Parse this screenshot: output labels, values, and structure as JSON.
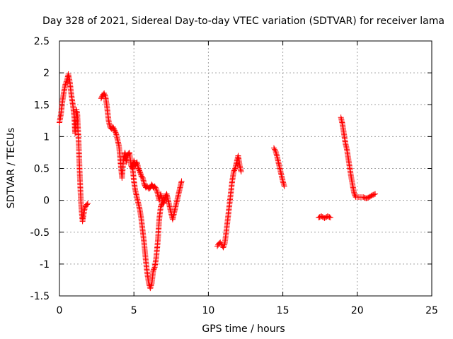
{
  "chart_data": {
    "type": "scatter",
    "title": "Day 328 of 2021, Sidereal Day-to-day VTEC variation (SDTVAR) for receiver lama",
    "xlabel": "GPS time / hours",
    "ylabel": "SDTVAR / TECUs",
    "xlim": [
      0,
      25
    ],
    "ylim": [
      -1.5,
      2.5
    ],
    "xticks": [
      0,
      5,
      10,
      15,
      20,
      25
    ],
    "yticks": [
      -1.5,
      -1,
      -0.5,
      0,
      0.5,
      1,
      1.5,
      2,
      2.5
    ],
    "xtick_labels": [
      "0",
      "5",
      "10",
      "15",
      "20",
      "25"
    ],
    "ytick_labels": [
      "-1.5",
      "-1",
      "-0.5",
      "0",
      "0.5",
      "1",
      "1.5",
      "2",
      "2.5"
    ],
    "grid": true,
    "marker": "+",
    "color": "#ff0000",
    "series": [
      {
        "name": "SDTVAR",
        "segments": [
          [
            [
              0.0,
              1.22
            ],
            [
              0.1,
              1.35
            ],
            [
              0.2,
              1.55
            ],
            [
              0.3,
              1.7
            ],
            [
              0.4,
              1.82
            ],
            [
              0.5,
              1.88
            ],
            [
              0.6,
              1.98
            ],
            [
              0.7,
              1.85
            ],
            [
              0.8,
              1.65
            ],
            [
              0.9,
              1.5
            ],
            [
              1.0,
              1.3
            ],
            [
              1.05,
              1.05
            ],
            [
              1.1,
              1.25
            ],
            [
              1.15,
              1.42
            ],
            [
              1.2,
              1.35
            ],
            [
              1.25,
              1.1
            ],
            [
              1.3,
              0.85
            ],
            [
              1.35,
              0.5
            ],
            [
              1.4,
              0.2
            ],
            [
              1.45,
              -0.05
            ],
            [
              1.5,
              -0.2
            ],
            [
              1.55,
              -0.33
            ],
            [
              1.6,
              -0.25
            ],
            [
              1.7,
              -0.12
            ],
            [
              1.8,
              -0.08
            ],
            [
              1.9,
              -0.05
            ]
          ],
          [
            [
              2.8,
              1.6
            ],
            [
              2.9,
              1.65
            ],
            [
              3.0,
              1.68
            ],
            [
              3.1,
              1.62
            ],
            [
              3.2,
              1.45
            ],
            [
              3.3,
              1.25
            ],
            [
              3.4,
              1.15
            ],
            [
              3.5,
              1.12
            ],
            [
              3.6,
              1.15
            ],
            [
              3.7,
              1.1
            ],
            [
              3.8,
              1.05
            ],
            [
              3.9,
              0.95
            ],
            [
              4.0,
              0.85
            ],
            [
              4.1,
              0.6
            ],
            [
              4.2,
              0.35
            ],
            [
              4.3,
              0.65
            ],
            [
              4.4,
              0.75
            ],
            [
              4.5,
              0.6
            ],
            [
              4.6,
              0.72
            ],
            [
              4.7,
              0.75
            ],
            [
              4.8,
              0.55
            ],
            [
              4.9,
              0.5
            ],
            [
              5.0,
              0.62
            ],
            [
              5.1,
              0.55
            ],
            [
              5.2,
              0.6
            ],
            [
              5.3,
              0.5
            ],
            [
              5.4,
              0.45
            ],
            [
              5.5,
              0.38
            ],
            [
              5.6,
              0.35
            ],
            [
              5.7,
              0.25
            ],
            [
              5.8,
              0.2
            ],
            [
              5.9,
              0.22
            ],
            [
              6.0,
              0.18
            ],
            [
              6.1,
              0.2
            ],
            [
              6.2,
              0.25
            ],
            [
              6.3,
              0.2
            ],
            [
              6.4,
              0.22
            ],
            [
              6.5,
              0.18
            ],
            [
              6.6,
              0.1
            ],
            [
              6.7,
              0.0
            ],
            [
              6.8,
              0.1
            ],
            [
              6.9,
              0.0
            ],
            [
              7.0,
              -0.05
            ],
            [
              7.1,
              0.05
            ],
            [
              7.2,
              0.1
            ],
            [
              7.3,
              0.0
            ],
            [
              7.4,
              -0.1
            ],
            [
              7.5,
              -0.2
            ],
            [
              7.6,
              -0.3
            ],
            [
              7.7,
              -0.2
            ],
            [
              7.8,
              -0.1
            ],
            [
              7.9,
              0.0
            ],
            [
              8.0,
              0.1
            ],
            [
              8.1,
              0.2
            ],
            [
              8.2,
              0.3
            ]
          ],
          [
            [
              4.9,
              0.55
            ],
            [
              5.0,
              0.3
            ],
            [
              5.1,
              0.15
            ],
            [
              5.2,
              0.05
            ],
            [
              5.3,
              -0.05
            ],
            [
              5.4,
              -0.15
            ],
            [
              5.5,
              -0.3
            ],
            [
              5.6,
              -0.5
            ],
            [
              5.7,
              -0.7
            ],
            [
              5.8,
              -0.95
            ],
            [
              5.9,
              -1.15
            ],
            [
              6.0,
              -1.3
            ],
            [
              6.1,
              -1.38
            ],
            [
              6.2,
              -1.3
            ],
            [
              6.3,
              -1.1
            ],
            [
              6.4,
              -1.05
            ],
            [
              6.5,
              -0.9
            ],
            [
              6.6,
              -0.65
            ],
            [
              6.7,
              -0.3
            ],
            [
              6.8,
              -0.1
            ],
            [
              6.9,
              -0.05
            ]
          ],
          [
            [
              10.6,
              -0.72
            ],
            [
              10.7,
              -0.68
            ],
            [
              10.8,
              -0.66
            ],
            [
              10.9,
              -0.7
            ],
            [
              11.0,
              -0.74
            ],
            [
              11.1,
              -0.68
            ],
            [
              11.2,
              -0.5
            ],
            [
              11.3,
              -0.3
            ],
            [
              11.4,
              -0.1
            ],
            [
              11.5,
              0.1
            ],
            [
              11.6,
              0.3
            ],
            [
              11.7,
              0.45
            ],
            [
              11.8,
              0.5
            ],
            [
              11.9,
              0.6
            ],
            [
              12.0,
              0.7
            ],
            [
              12.1,
              0.55
            ],
            [
              12.2,
              0.45
            ]
          ],
          [
            [
              14.4,
              0.82
            ],
            [
              14.5,
              0.78
            ],
            [
              14.6,
              0.7
            ],
            [
              14.7,
              0.6
            ],
            [
              14.8,
              0.5
            ],
            [
              14.9,
              0.4
            ],
            [
              15.0,
              0.3
            ],
            [
              15.1,
              0.22
            ]
          ],
          [
            [
              17.4,
              -0.27
            ],
            [
              17.6,
              -0.25
            ],
            [
              17.8,
              -0.28
            ],
            [
              18.0,
              -0.25
            ],
            [
              18.2,
              -0.27
            ]
          ],
          [
            [
              18.9,
              1.3
            ],
            [
              19.0,
              1.2
            ],
            [
              19.1,
              1.05
            ],
            [
              19.2,
              0.9
            ],
            [
              19.3,
              0.8
            ],
            [
              19.4,
              0.65
            ],
            [
              19.5,
              0.5
            ],
            [
              19.6,
              0.35
            ],
            [
              19.7,
              0.22
            ],
            [
              19.8,
              0.1
            ],
            [
              19.9,
              0.05
            ],
            [
              20.0,
              0.05
            ],
            [
              20.2,
              0.05
            ],
            [
              20.4,
              0.05
            ],
            [
              20.6,
              0.03
            ],
            [
              20.8,
              0.05
            ],
            [
              21.0,
              0.08
            ],
            [
              21.2,
              0.1
            ]
          ]
        ]
      }
    ]
  }
}
